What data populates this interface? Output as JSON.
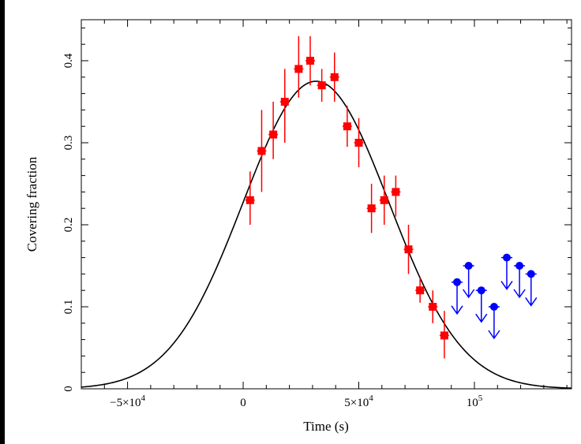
{
  "chart_data": {
    "type": "scatter",
    "title": "",
    "xlabel": "Time (s)",
    "ylabel": "Covering fraction",
    "xlim": [
      -70000,
      142000
    ],
    "ylim": [
      0,
      0.45
    ],
    "x_ticks": [
      {
        "value": -50000,
        "label": "−5×10",
        "exp": "4"
      },
      {
        "value": 0,
        "label": "0",
        "exp": ""
      },
      {
        "value": 50000,
        "label": "5×10",
        "exp": "4"
      },
      {
        "value": 100000,
        "label": "10",
        "exp": "5"
      }
    ],
    "y_ticks": [
      {
        "value": 0,
        "label": "0"
      },
      {
        "value": 0.1,
        "label": "0.1"
      },
      {
        "value": 0.2,
        "label": "0.2"
      },
      {
        "value": 0.3,
        "label": "0.3"
      },
      {
        "value": 0.4,
        "label": "0.4"
      }
    ],
    "grid": false,
    "series": [
      {
        "kind": "measurements",
        "color": "#ff0000",
        "marker": "square",
        "points": [
          {
            "x": 3000,
            "y": 0.23,
            "yerr": [
              0.03,
              0.035
            ]
          },
          {
            "x": 8000,
            "y": 0.29,
            "yerr": [
              0.05,
              0.05
            ]
          },
          {
            "x": 13000,
            "y": 0.31,
            "yerr": [
              0.03,
              0.04
            ]
          },
          {
            "x": 18000,
            "y": 0.35,
            "yerr": [
              0.05,
              0.04
            ]
          },
          {
            "x": 24000,
            "y": 0.39,
            "yerr": [
              0.035,
              0.04
            ]
          },
          {
            "x": 29000,
            "y": 0.4,
            "yerr": [
              0.03,
              0.03
            ]
          },
          {
            "x": 34000,
            "y": 0.37,
            "yerr": [
              0.02,
              0.02
            ]
          },
          {
            "x": 39500,
            "y": 0.38,
            "yerr": [
              0.03,
              0.03
            ]
          },
          {
            "x": 45000,
            "y": 0.32,
            "yerr": [
              0.025,
              0.025
            ]
          },
          {
            "x": 50000,
            "y": 0.3,
            "yerr": [
              0.03,
              0.03
            ]
          },
          {
            "x": 55500,
            "y": 0.22,
            "yerr": [
              0.03,
              0.03
            ]
          },
          {
            "x": 61000,
            "y": 0.23,
            "yerr": [
              0.03,
              0.03
            ]
          },
          {
            "x": 66000,
            "y": 0.24,
            "yerr": [
              0.03,
              0.02
            ]
          },
          {
            "x": 71500,
            "y": 0.17,
            "yerr": [
              0.03,
              0.03
            ]
          },
          {
            "x": 76500,
            "y": 0.12,
            "yerr": [
              0.015,
              0.015
            ]
          },
          {
            "x": 82000,
            "y": 0.1,
            "yerr": [
              0.02,
              0.02
            ]
          },
          {
            "x": 87000,
            "y": 0.065,
            "yerr": [
              0.028,
              0.03
            ]
          }
        ]
      },
      {
        "kind": "upper_limits",
        "color": "#0000ff",
        "marker": "circle-down-arrow",
        "points": [
          {
            "x": 92500,
            "y": 0.13
          },
          {
            "x": 97500,
            "y": 0.15
          },
          {
            "x": 103000,
            "y": 0.12
          },
          {
            "x": 108500,
            "y": 0.1
          },
          {
            "x": 114000,
            "y": 0.16
          },
          {
            "x": 119500,
            "y": 0.15
          },
          {
            "x": 124500,
            "y": 0.14
          }
        ]
      },
      {
        "kind": "model",
        "color": "#000000",
        "curve": "gaussian",
        "amplitude": 0.375,
        "mu": 31500,
        "sigma": 31500
      }
    ]
  }
}
